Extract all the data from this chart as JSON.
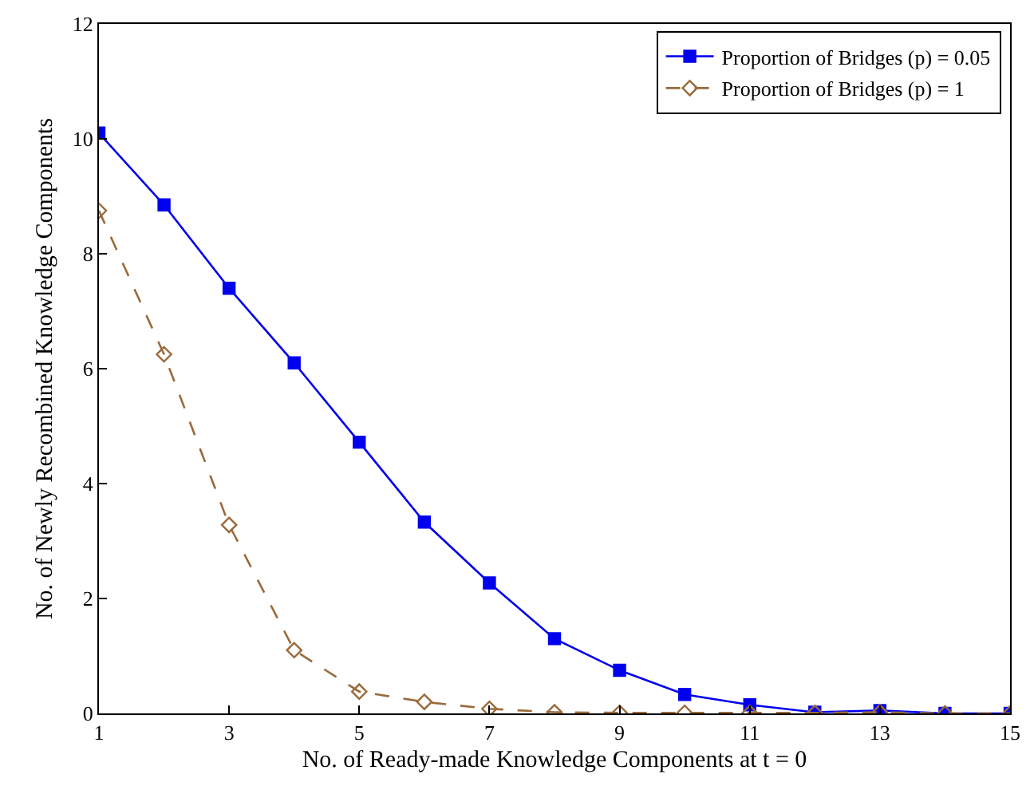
{
  "chart_data": {
    "type": "line",
    "xlabel": "No. of Ready-made Knowledge Components at t = 0",
    "ylabel": "No. of Newly Recombined Knowledge Components",
    "x": [
      1,
      2,
      3,
      4,
      5,
      6,
      7,
      8,
      9,
      10,
      11,
      12,
      13,
      14,
      15
    ],
    "series": [
      {
        "name": "Proportion of Bridges (p) = 0.05",
        "color": "#0000ee",
        "marker": "square",
        "line_style": "solid",
        "values": [
          10.1,
          8.85,
          7.4,
          6.1,
          4.72,
          3.33,
          2.27,
          1.3,
          0.75,
          0.33,
          0.15,
          0.02,
          0.05,
          0.0,
          0.0
        ]
      },
      {
        "name": "Proportion of Bridges (p) = 1",
        "color": "#9a6a3a",
        "marker": "diamond",
        "line_style": "dashed",
        "values": [
          8.75,
          6.25,
          3.28,
          1.1,
          0.38,
          0.2,
          0.08,
          0.02,
          0.01,
          0.01,
          0.01,
          0.01,
          0.02,
          0.0,
          0.0
        ]
      }
    ],
    "xlim": [
      1,
      15
    ],
    "xticks": [
      1,
      3,
      5,
      7,
      9,
      11,
      13,
      15
    ],
    "ylim": [
      0,
      12
    ],
    "yticks": [
      0,
      2,
      4,
      6,
      8,
      10,
      12
    ],
    "legend": "top right"
  }
}
